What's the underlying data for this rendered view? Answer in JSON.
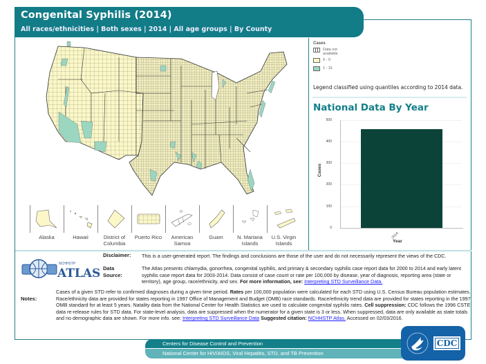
{
  "header": {
    "title": "Congenital Syphilis (2014)",
    "subtitle": "All races/ethnicities | Both sexes | 2014 | All age groups | By County"
  },
  "legend": {
    "title": "Cases",
    "items": [
      {
        "label": "Data not available",
        "color": "#ffffff"
      },
      {
        "label": "0 - 0",
        "color": "#fbf7c8"
      },
      {
        "label": "1 - 31",
        "color": "#9bd6c0"
      }
    ],
    "note": "Legend classified using quantiles according to 2014 data."
  },
  "territories": [
    {
      "label": "Alaska"
    },
    {
      "label": "Hawaii"
    },
    {
      "label": "District of Columbia"
    },
    {
      "label": "Puerto Rico"
    },
    {
      "label": "American Samoa"
    },
    {
      "label": "Guam"
    },
    {
      "label": "N. Mariana Islands"
    },
    {
      "label": "U.S. Virgin Islands"
    }
  ],
  "national": {
    "title": "National Data By Year"
  },
  "chart_data": {
    "type": "bar",
    "title": "National Data By Year",
    "categories": [
      "2014"
    ],
    "values": [
      458
    ],
    "xlabel": "Year",
    "ylabel": "Cases",
    "ylim": [
      0,
      500
    ],
    "yticks": [
      0,
      100,
      200,
      300,
      400,
      500
    ],
    "bar_color": "#0b4339",
    "grid": true
  },
  "info": {
    "disclaimer_label": "Disclaimer:",
    "disclaimer_text": "This is a user-generated report. The findings and conclusions are those of the user and do not necessarily represent the views of the CDC.",
    "datasource_label": "Data Source:",
    "datasource_text": "The Atlas presents chlamydia, gonorrhea, congenital syphilis, and primary & secondary syphilis case report data for 2000 to 2014 and early latent syphilis case report data for 2003-2014. Data consist of case count or rate per 100,000 by disease, year of diagnosis, reporting area (state or territory), age group, race/ethnicity, and sex.",
    "datasource_more": "For more information, see:",
    "datasource_link": "Interpreting STD Surveillance Data.",
    "notes_label": "Notes:",
    "notes_p1": "Cases of a given STD refer to confirmed diagnoses during a given time period.",
    "notes_rates_b": "Rates",
    "notes_p2": "per 100,000 population were calculated for each STD using U.S. Census Bureau population estimates. Race/ethnicity data are provided for states reporting in 1997 Office of Management and Budget (OMB) race standards. Race/ethnicity trend data are provided for states reporting in the 1997 OMB standard for at least 5 years. Natality data from the National Center for Health Statistics are used to calculate congenital syphilis rates.",
    "notes_cell_b": "Cell suppression:",
    "notes_p3": "CDC follows the 1996 CSTE data re-release rules for STD data. For state-level analysis, data are suppressed when the numerator for a given state is 3 or less. When suppressed, data are only available as state totals and no demographic data are shown. For more info. see:",
    "notes_link1": "Interpreting STD Surveillance Data",
    "notes_cite_b": "Suggested citation:",
    "notes_link2": "NCHHSTP Atlas.",
    "notes_accessed": "Accessed on 02/03/2016."
  },
  "logo": {
    "atlas_small": "NCHHSTP",
    "atlas_big": "ATLAS"
  },
  "footer": {
    "line1": "Centers for Disease Control and Prevention",
    "line2": "National Center for HIV/AIDS, Viral Hepatitis, STD, and TB Prevention",
    "cdc": "CDC"
  },
  "colors": {
    "teal": "#127c87",
    "teal_light": "#5fb3b9",
    "zero": "#fbf7c8",
    "cases": "#9bd6c0",
    "bar": "#0b4339",
    "cdc_blue": "#1462a8"
  }
}
